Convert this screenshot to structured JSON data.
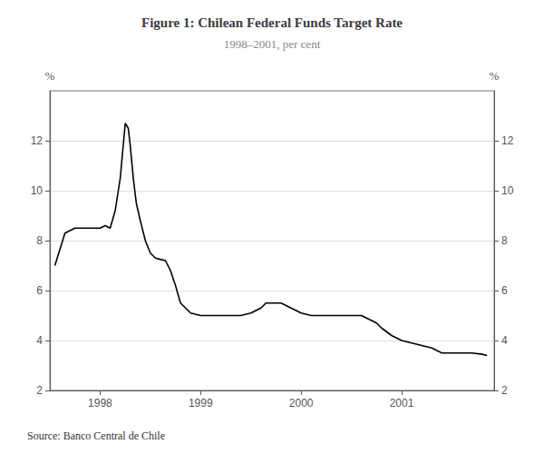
{
  "chart_data": {
    "type": "line",
    "title": "Figure 1: Chilean Federal Funds Target Rate",
    "subtitle": "1998–2001, per cent",
    "source": "Source: Banco Central de Chile",
    "ylabel": "%",
    "y2label": "%",
    "color": "#000000",
    "grid": true,
    "x": [
      1997.55,
      1997.65,
      1997.75,
      1997.83,
      1997.92,
      1998.0,
      1998.05,
      1998.1,
      1998.15,
      1998.2,
      1998.25,
      1998.28,
      1998.3,
      1998.33,
      1998.36,
      1998.4,
      1998.45,
      1998.5,
      1998.55,
      1998.6,
      1998.65,
      1998.7,
      1998.75,
      1998.8,
      1998.9,
      1999.0,
      1999.1,
      1999.2,
      1999.3,
      1999.4,
      1999.5,
      1999.6,
      1999.65,
      1999.7,
      1999.8,
      1999.9,
      2000.0,
      2000.1,
      2000.2,
      2000.3,
      2000.4,
      2000.5,
      2000.55,
      2000.6,
      2000.65,
      2000.7,
      2000.75,
      2000.8,
      2000.9,
      2001.0,
      2001.1,
      2001.2,
      2001.3,
      2001.4,
      2001.5,
      2001.6,
      2001.7,
      2001.8,
      2001.85
    ],
    "values": [
      7.0,
      8.3,
      8.5,
      8.5,
      8.5,
      8.5,
      8.6,
      8.5,
      9.2,
      10.5,
      12.7,
      12.5,
      11.8,
      10.5,
      9.5,
      8.8,
      8.0,
      7.5,
      7.3,
      7.25,
      7.2,
      6.8,
      6.2,
      5.5,
      5.1,
      5.0,
      5.0,
      5.0,
      5.0,
      5.0,
      5.1,
      5.3,
      5.5,
      5.5,
      5.5,
      5.3,
      5.1,
      5.0,
      5.0,
      5.0,
      5.0,
      5.0,
      5.0,
      5.0,
      4.9,
      4.8,
      4.7,
      4.5,
      4.2,
      4.0,
      3.9,
      3.8,
      3.7,
      3.5,
      3.5,
      3.5,
      3.5,
      3.45,
      3.4
    ],
    "xlim": [
      1997.5,
      2001.92
    ],
    "xticks": [
      1998,
      1999,
      2000,
      2001
    ],
    "ylim": [
      2,
      14
    ],
    "yticks": [
      2,
      4,
      6,
      8,
      10,
      12
    ],
    "y2lim": [
      2,
      14
    ],
    "y2ticks": [
      2,
      4,
      6,
      8,
      10,
      12
    ]
  }
}
